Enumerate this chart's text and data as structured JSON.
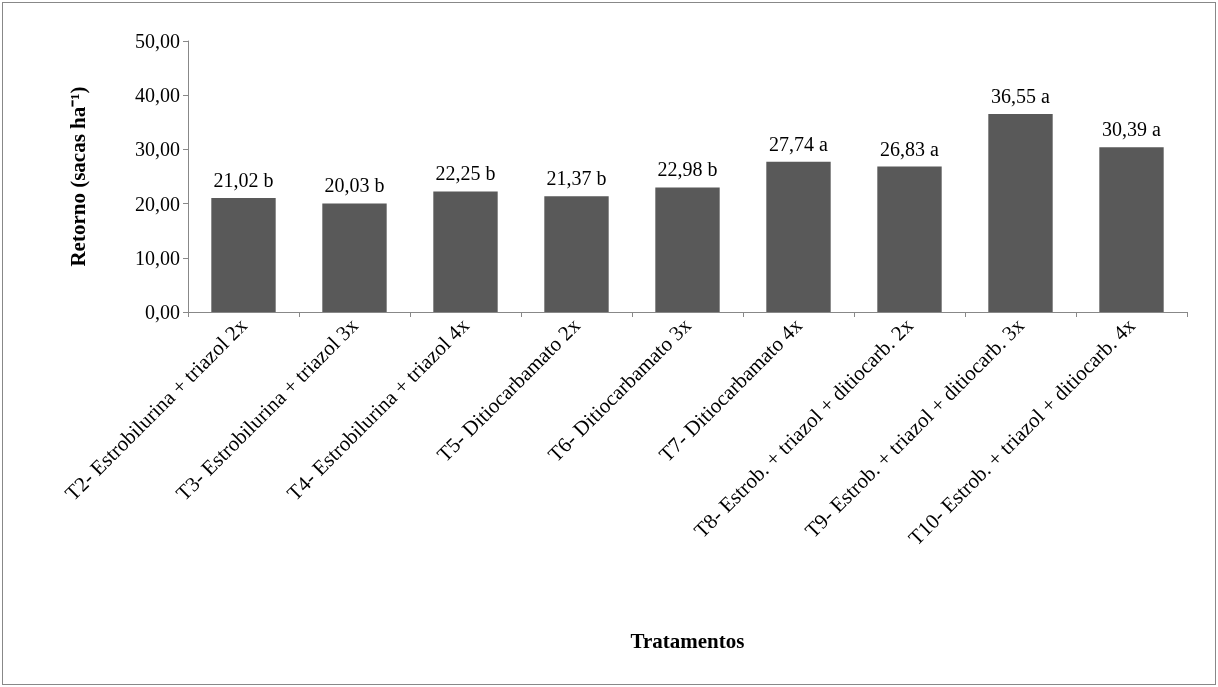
{
  "chart_data": {
    "type": "bar",
    "xlabel": "Tratamentos",
    "ylabel": "Retorno (sacas ha⁻¹)",
    "categories": [
      "T2- Estrobilurina + triazol 2x",
      "T3- Estrobilurina + triazol 3x",
      "T4- Estrobilurina + triazol 4x",
      "T5- Ditiocarbamato 2x",
      "T6- Ditiocarbamato 3x",
      "T7- Ditiocarbamato 4x",
      "T8- Estrob. + triazol + ditiocarb. 2x",
      "T9- Estrob. + triazol + ditiocarb. 3x",
      "T10- Estrob. + triazol + ditiocarb. 4x"
    ],
    "values": [
      21.02,
      20.03,
      22.25,
      21.37,
      22.98,
      27.74,
      26.83,
      36.55,
      30.39
    ],
    "value_labels": [
      "21,02 b",
      "20,03 b",
      "22,25 b",
      "21,37 b",
      "22,98 b",
      "27,74 a",
      "26,83 a",
      "36,55 a",
      "30,39 a"
    ],
    "color": "#595959",
    "ylim": [
      0,
      50
    ],
    "yticks": [
      {
        "value": 0,
        "label": "0,00"
      },
      {
        "value": 10,
        "label": "10,00"
      },
      {
        "value": 20,
        "label": "20,00"
      },
      {
        "value": 30,
        "label": "30,00"
      },
      {
        "value": 40,
        "label": "40,00"
      },
      {
        "value": 50,
        "label": "50,00"
      }
    ],
    "grid": false
  }
}
